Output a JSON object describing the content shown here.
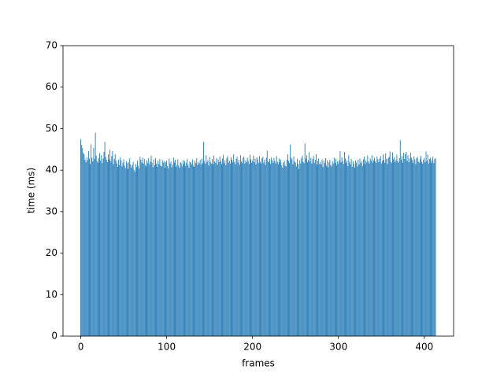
{
  "chart_data": {
    "type": "bar",
    "xlabel": "frames",
    "ylabel": "time (ms)",
    "color": "#1f77b4",
    "bar_width": 0.8,
    "xlim": [
      -20.7,
      434.1
    ],
    "xticks": [
      0,
      100,
      200,
      300,
      400
    ],
    "ylim": [
      0,
      70
    ],
    "yticks": [
      0,
      10,
      20,
      30,
      40,
      50,
      60,
      70
    ],
    "x": [
      0,
      1,
      2,
      3,
      4,
      5,
      6,
      7,
      8,
      9,
      10,
      11,
      12,
      13,
      14,
      15,
      16,
      17,
      18,
      19,
      20,
      21,
      22,
      23,
      24,
      25,
      26,
      27,
      28,
      29,
      30,
      31,
      32,
      33,
      34,
      35,
      36,
      37,
      38,
      39,
      40,
      41,
      42,
      43,
      44,
      45,
      46,
      47,
      48,
      49,
      50,
      51,
      52,
      53,
      54,
      55,
      56,
      57,
      58,
      59,
      60,
      61,
      62,
      63,
      64,
      65,
      66,
      67,
      68,
      69,
      70,
      71,
      72,
      73,
      74,
      75,
      76,
      77,
      78,
      79,
      80,
      81,
      82,
      83,
      84,
      85,
      86,
      87,
      88,
      89,
      90,
      91,
      92,
      93,
      94,
      95,
      96,
      97,
      98,
      99,
      100,
      101,
      102,
      103,
      104,
      105,
      106,
      107,
      108,
      109,
      110,
      111,
      112,
      113,
      114,
      115,
      116,
      117,
      118,
      119,
      120,
      121,
      122,
      123,
      124,
      125,
      126,
      127,
      128,
      129,
      130,
      131,
      132,
      133,
      134,
      135,
      136,
      137,
      138,
      139,
      140,
      141,
      142,
      143,
      144,
      145,
      146,
      147,
      148,
      149,
      150,
      151,
      152,
      153,
      154,
      155,
      156,
      157,
      158,
      159,
      160,
      161,
      162,
      163,
      164,
      165,
      166,
      167,
      168,
      169,
      170,
      171,
      172,
      173,
      174,
      175,
      176,
      177,
      178,
      179,
      180,
      181,
      182,
      183,
      184,
      185,
      186,
      187,
      188,
      189,
      190,
      191,
      192,
      193,
      194,
      195,
      196,
      197,
      198,
      199,
      200,
      201,
      202,
      203,
      204,
      205,
      206,
      207,
      208,
      209,
      210,
      211,
      212,
      213,
      214,
      215,
      216,
      217,
      218,
      219,
      220,
      221,
      222,
      223,
      224,
      225,
      226,
      227,
      228,
      229,
      230,
      231,
      232,
      233,
      234,
      235,
      236,
      237,
      238,
      239,
      240,
      241,
      242,
      243,
      244,
      245,
      246,
      247,
      248,
      249,
      250,
      251,
      252,
      253,
      254,
      255,
      256,
      257,
      258,
      259,
      260,
      261,
      262,
      263,
      264,
      265,
      266,
      267,
      268,
      269,
      270,
      271,
      272,
      273,
      274,
      275,
      276,
      277,
      278,
      279,
      280,
      281,
      282,
      283,
      284,
      285,
      286,
      287,
      288,
      289,
      290,
      291,
      292,
      293,
      294,
      295,
      296,
      297,
      298,
      299,
      300,
      301,
      302,
      303,
      304,
      305,
      306,
      307,
      308,
      309,
      310,
      311,
      312,
      313,
      314,
      315,
      316,
      317,
      318,
      319,
      320,
      321,
      322,
      323,
      324,
      325,
      326,
      327,
      328,
      329,
      330,
      331,
      332,
      333,
      334,
      335,
      336,
      337,
      338,
      339,
      340,
      341,
      342,
      343,
      344,
      345,
      346,
      347,
      348,
      349,
      350,
      351,
      352,
      353,
      354,
      355,
      356,
      357,
      358,
      359,
      360,
      361,
      362,
      363,
      364,
      365,
      366,
      367,
      368,
      369,
      370,
      371,
      372,
      373,
      374,
      375,
      376,
      377,
      378,
      379,
      380,
      381,
      382,
      383,
      384,
      385,
      386,
      387,
      388,
      389,
      390,
      391,
      392,
      393,
      394,
      395,
      396,
      397,
      398,
      399,
      400,
      401,
      402,
      403,
      404,
      405,
      406,
      407,
      408,
      409,
      410,
      411,
      412,
      413
    ],
    "values": [
      47.5,
      46.1,
      45.3,
      44.2,
      43.8,
      42.5,
      41.9,
      43.1,
      42.4,
      44.6,
      42.8,
      41.5,
      46.2,
      43.0,
      42.1,
      45.4,
      42.7,
      49.0,
      43.5,
      42.2,
      41.8,
      42.9,
      44.1,
      42.3,
      43.6,
      41.7,
      42.8,
      44.4,
      46.8,
      43.2,
      42.5,
      41.9,
      43.8,
      42.6,
      44.9,
      42.1,
      43.4,
      44.6,
      41.5,
      42.7,
      43.9,
      42.3,
      41.6,
      40.8,
      42.5,
      41.2,
      43.1,
      42.4,
      40.9,
      41.8,
      42.6,
      41.1,
      40.5,
      42.2,
      41.7,
      40.3,
      41.9,
      42.8,
      41.4,
      40.6,
      41.2,
      42.0,
      40.1,
      39.6,
      41.5,
      40.8,
      42.3,
      41.1,
      40.4,
      43.2,
      42.5,
      41.8,
      43.0,
      41.6,
      42.7,
      41.3,
      40.9,
      42.4,
      41.7,
      42.9,
      41.4,
      42.1,
      43.5,
      41.8,
      40.7,
      42.6,
      41.2,
      42.9,
      41.6,
      40.8,
      42.3,
      41.5,
      42.7,
      41.1,
      40.9,
      42.4,
      41.8,
      42.2,
      40.6,
      41.9,
      42.3,
      41.0,
      40.4,
      42.8,
      41.6,
      42.1,
      40.7,
      41.4,
      43.0,
      41.9,
      42.5,
      40.8,
      41.3,
      42.6,
      41.1,
      40.5,
      42.0,
      41.7,
      40.9,
      42.4,
      41.5,
      42.2,
      41.0,
      41.8,
      42.7,
      41.3,
      40.6,
      42.1,
      41.9,
      41.4,
      42.6,
      41.1,
      40.8,
      42.3,
      41.7,
      42.9,
      41.2,
      42.0,
      41.6,
      42.5,
      41.3,
      42.8,
      41.7,
      46.8,
      42.2,
      41.5,
      43.6,
      41.9,
      42.4,
      41.1,
      43.2,
      42.0,
      41.6,
      42.7,
      41.4,
      43.5,
      42.1,
      41.8,
      42.9,
      41.3,
      42.6,
      41.9,
      43.3,
      42.2,
      41.5,
      42.8,
      43.7,
      41.7,
      42.4,
      41.2,
      42.9,
      43.4,
      41.8,
      42.3,
      41.6,
      43.1,
      42.5,
      41.9,
      43.8,
      42.0,
      41.4,
      42.7,
      43.2,
      41.8,
      42.5,
      41.3,
      43.6,
      42.1,
      41.7,
      42.9,
      43.3,
      41.6,
      42.4,
      41.9,
      43.0,
      42.2,
      41.5,
      43.7,
      42.6,
      41.8,
      42.3,
      43.5,
      41.9,
      42.8,
      41.4,
      43.1,
      42.6,
      41.7,
      43.4,
      42.0,
      41.6,
      42.9,
      43.2,
      41.8,
      42.5,
      41.3,
      43.0,
      44.7,
      42.1,
      41.9,
      42.7,
      41.5,
      43.1,
      42.4,
      41.8,
      42.9,
      42.2,
      41.6,
      43.4,
      42.0,
      41.4,
      42.8,
      41.9,
      42.5,
      41.2,
      40.6,
      41.8,
      42.3,
      41.1,
      40.9,
      42.5,
      43.8,
      42.2,
      41.7,
      46.2,
      43.0,
      42.6,
      41.4,
      43.3,
      42.1,
      41.8,
      40.9,
      42.7,
      41.5,
      40.3,
      42.4,
      41.6,
      42.9,
      43.5,
      42.0,
      41.7,
      46.4,
      42.8,
      43.6,
      41.9,
      42.4,
      44.3,
      42.1,
      43.0,
      41.6,
      42.7,
      43.4,
      41.8,
      42.5,
      43.9,
      41.3,
      42.2,
      42.8,
      41.5,
      42.0,
      41.4,
      42.6,
      40.8,
      42.3,
      41.7,
      42.9,
      41.1,
      42.4,
      40.7,
      41.9,
      42.5,
      41.3,
      40.9,
      42.2,
      41.6,
      43.0,
      41.8,
      42.7,
      41.2,
      42.1,
      41.6,
      42.4,
      44.6,
      41.9,
      43.1,
      42.2,
      41.5,
      44.4,
      42.8,
      41.7,
      42.3,
      41.0,
      43.6,
      42.0,
      41.4,
      42.7,
      40.8,
      42.1,
      41.6,
      40.6,
      42.3,
      41.8,
      40.9,
      42.5,
      41.3,
      42.8,
      41.7,
      42.2,
      41.0,
      42.6,
      43.2,
      41.5,
      42.4,
      41.9,
      43.5,
      42.1,
      41.6,
      42.8,
      42.3,
      43.6,
      41.8,
      42.4,
      43.0,
      42.1,
      41.7,
      43.3,
      42.6,
      41.9,
      42.8,
      43.4,
      41.6,
      42.2,
      43.8,
      42.5,
      41.8,
      44.1,
      42.7,
      41.5,
      42.9,
      43.2,
      44.5,
      42.0,
      41.7,
      44.3,
      42.6,
      43.1,
      41.9,
      42.4,
      43.7,
      42.2,
      41.8,
      42.9,
      47.2,
      42.5,
      43.4,
      41.8,
      44.2,
      42.7,
      43.9,
      44.4,
      42.3,
      43.6,
      41.9,
      42.8,
      44.2,
      43.0,
      42.4,
      41.7,
      43.3,
      42.6,
      41.5,
      42.9,
      43.2,
      42.1,
      41.8,
      42.7,
      43.4,
      42.0,
      41.6,
      42.5,
      42.9,
      41.9,
      44.5,
      42.3,
      43.8,
      41.6,
      42.7,
      43.0,
      41.8,
      42.4,
      43.2,
      41.7,
      42.6,
      42.9
    ]
  }
}
